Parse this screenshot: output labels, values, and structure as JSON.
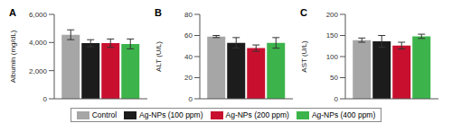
{
  "chart_data": [
    {
      "type": "bar",
      "title": "A",
      "y_label": "Albumin (mg/dL)",
      "categories": [
        null
      ],
      "ylim": [
        0,
        6000
      ],
      "yticks": [
        0,
        {
          "value": 2000,
          "label": "2,000"
        },
        {
          "value": 4000,
          "label": "4,000"
        },
        {
          "value": 6000,
          "label": "6,000"
        }
      ],
      "grid": false,
      "legend": "bottom",
      "series": [
        {
          "name": "Control",
          "color": "#a6a6a6",
          "values": [
            4550
          ],
          "errors": [
            350
          ]
        },
        {
          "name": "Ag-NPs (100 ppm)",
          "color": "#1c1c1c",
          "values": [
            3950
          ],
          "errors": [
            250
          ]
        },
        {
          "name": "Ag-NPs (200 ppm)",
          "color": "#c8102e",
          "values": [
            3950
          ],
          "errors": [
            300
          ]
        },
        {
          "name": "Ag-NPs (400 ppm)",
          "color": "#3cb44b",
          "values": [
            3900
          ],
          "errors": [
            350
          ]
        }
      ]
    },
    {
      "type": "bar",
      "title": "B",
      "y_label": "ALT (U/L)",
      "categories": [
        null
      ],
      "ylim": [
        0,
        80
      ],
      "yticks": [
        0,
        20,
        40,
        60,
        80
      ],
      "grid": false,
      "legend": "bottom",
      "series": [
        {
          "name": "Control",
          "color": "#a6a6a6",
          "values": [
            59
          ],
          "errors": [
            1
          ]
        },
        {
          "name": "Ag-NPs (100 ppm)",
          "color": "#1c1c1c",
          "values": [
            53
          ],
          "errors": [
            5
          ]
        },
        {
          "name": "Ag-NPs (200 ppm)",
          "color": "#c8102e",
          "values": [
            48
          ],
          "errors": [
            3
          ]
        },
        {
          "name": "Ag-NPs (400 ppm)",
          "color": "#3cb44b",
          "values": [
            53
          ],
          "errors": [
            5
          ]
        }
      ]
    },
    {
      "type": "bar",
      "title": "C",
      "y_label": "AST (U/L)",
      "categories": [
        null
      ],
      "ylim": [
        0,
        200
      ],
      "yticks": [
        0,
        50,
        100,
        150,
        200
      ],
      "grid": false,
      "legend": "bottom",
      "series": [
        {
          "name": "Control",
          "color": "#a6a6a6",
          "values": [
            139
          ],
          "errors": [
            5
          ]
        },
        {
          "name": "Ag-NPs (100 ppm)",
          "color": "#1c1c1c",
          "values": [
            136
          ],
          "errors": [
            14
          ]
        },
        {
          "name": "Ag-NPs (200 ppm)",
          "color": "#c8102e",
          "values": [
            126
          ],
          "errors": [
            8
          ]
        },
        {
          "name": "Ag-NPs (400 ppm)",
          "color": "#3cb44b",
          "values": [
            148
          ],
          "errors": [
            5
          ]
        }
      ]
    }
  ]
}
